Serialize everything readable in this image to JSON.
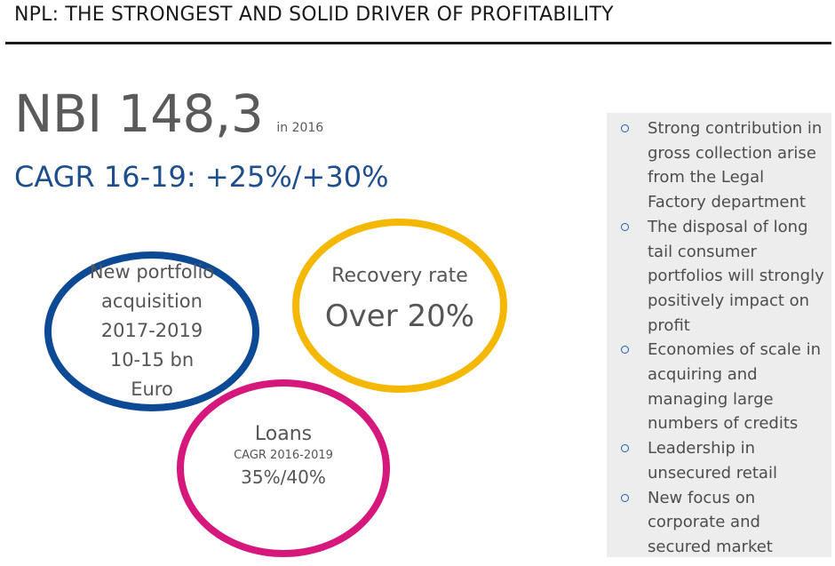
{
  "header": {
    "title": "NPL: THE STRONGEST AND SOLID DRIVER OF PROFITABILITY"
  },
  "headline": {
    "nbi_value": "NBI 148,3",
    "nbi_year": "in 2016",
    "cagr": "CAGR 16-19: +25%/+30%"
  },
  "rings": {
    "portfolio": {
      "lines": [
        "New portfolio",
        "acquisition",
        "2017-2019",
        "10-15 bn",
        "Euro"
      ],
      "color": "#0d4a96"
    },
    "recovery": {
      "label": "Recovery rate",
      "value": "Over 20%",
      "color": "#f5b800"
    },
    "loans": {
      "label": "Loans",
      "sub": "CAGR 2016-2019",
      "value": "35%/40%",
      "color": "#d6177c"
    }
  },
  "bullets": [
    "Strong contribution in gross collection arise from the Legal Factory department",
    "The disposal of long tail consumer portfolios will strongly positively impact on profit",
    "Economies of scale in acquiring and managing large numbers of credits",
    "Leadership in unsecured retail",
    "New focus on corporate and secured market"
  ],
  "colors": {
    "heading": "#1f4e8c",
    "bullet_mark": "#1f5fa8",
    "panel_bg": "#ededed"
  }
}
